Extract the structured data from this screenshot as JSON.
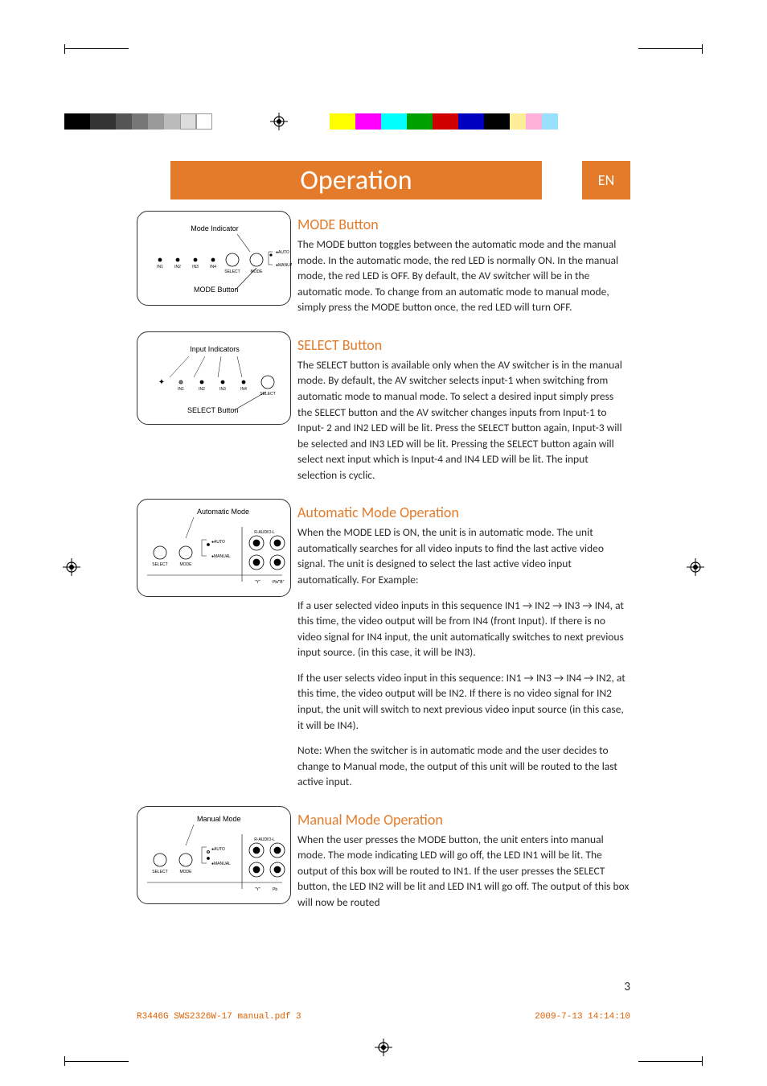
{
  "accent_color": "#e37b2a",
  "footer_color": "#e06000",
  "colorbars": {
    "left": [
      "#000000",
      "#333333",
      "#555555",
      "#777777",
      "#999999",
      "#bbbbbb",
      "#dddddd",
      "#ffffff"
    ],
    "right": [
      "#ffff00",
      "#ff00ff",
      "#00ffff",
      "#00a000",
      "#d00000",
      "#0000c0",
      "#000000",
      "#ffee99",
      "#ffb0d8",
      "#99e0ff"
    ]
  },
  "title": "Operation",
  "lang": "EN",
  "sections": [
    {
      "heading": "MODE Button",
      "paragraphs": [
        "The MODE button toggles between the automatic mode and the manual mode.  In the automatic mode,  the red LED is  normally ON.  In the manual mode, the red LED is OFF.  By default, the AV switcher  will be in the automatic mode.  To change from an automatic mode to manual mode, simply press the MODE button once, the red LED will turn OFF."
      ],
      "diagram": {
        "title_top": "Mode Indicator",
        "title_bottom": "MODE Button",
        "inputs": [
          "IN1",
          "IN2",
          "IN3",
          "IN4"
        ],
        "right_labels": [
          "AUTO",
          "MANUAL"
        ],
        "buttons": [
          "SELECT",
          "MODE"
        ]
      }
    },
    {
      "heading": "SELECT Button",
      "paragraphs": [
        "The SELECT button is available only when the AV switcher is in the manual mode.  By default, the AV switcher selects input-1 when switching from automatic mode to manual mode. To select a desired input simply press the SELECT button and the AV switcher changes inputs from Input-1 to Input- 2 and IN2 LED will be lit.  Press the SELECT button again, Input-3 will be selected and IN3 LED will be lit.  Pressing the SELECT button again will select next input which is Input-4 and IN4 LED will be lit. The input selection is cyclic."
      ],
      "diagram": {
        "title_top": "Input Indicators",
        "title_bottom": "SELECT Button",
        "inputs": [
          "IN1",
          "IN2",
          "IN3",
          "IN4"
        ],
        "buttons": [
          "SELECT"
        ]
      }
    },
    {
      "heading": "Automatic Mode Operation",
      "paragraphs": [
        "When the MODE LED is ON, the unit is in automatic mode. The unit automatically searches for all video inputs to find the last active video signal.  The unit is designed to select the last active video input automatically. For Example:",
        "If a user selected video inputs in this sequence IN1 → IN2 → IN3 → IN4, at this time, the video output will be from IN4 (front Input).  If there is no video signal for IN4 input, the unit automatically switches to next previous input source. (in this case, it will be IN3).",
        "If the user selects video input in this sequence: IN1 → IN3 → IN4 → IN2, at this time, the video output will be IN2.  If there is no video signal for IN2 input, the unit will switch to next previous video input source (in this case, it will be IN4).",
        "Note:  When the switcher is in automatic mode and the user decides to change to Manual mode, the output of this unit will be routed to the last active input."
      ],
      "diagram": {
        "title_top": "Automatic Mode",
        "right_labels": [
          "AUTO",
          "MANUAL"
        ],
        "buttons": [
          "SELECT",
          "MODE"
        ],
        "jacks": true,
        "audio_label": "R-AUDIO-L",
        "jack_labels": [
          "\"Y\"",
          "Pb/\"B\"",
          "Pr"
        ]
      }
    },
    {
      "heading": "Manual Mode Operation",
      "paragraphs": [
        "When the user presses the MODE button, the unit enters into manual mode.  The mode indicating LED will go off, the LED IN1 will be lit.  The output of this box will be routed to IN1.  If the user presses the SELECT button, the LED IN2 will be lit and LED IN1 will go off.  The output of this box will now be routed"
      ],
      "diagram": {
        "title_top": "Manual Mode",
        "right_labels": [
          "AUTO",
          "MANUAL"
        ],
        "buttons": [
          "SELECT",
          "MODE"
        ],
        "jacks": true,
        "audio_label": "R-AUDIO-L",
        "jack_labels": [
          "\"Y\"",
          "Pb"
        ]
      }
    }
  ],
  "page_number": "3",
  "footer_left": "R3446G SWS2326W-17 manual.pdf   3",
  "footer_right": "2009-7-13   14:14:10"
}
